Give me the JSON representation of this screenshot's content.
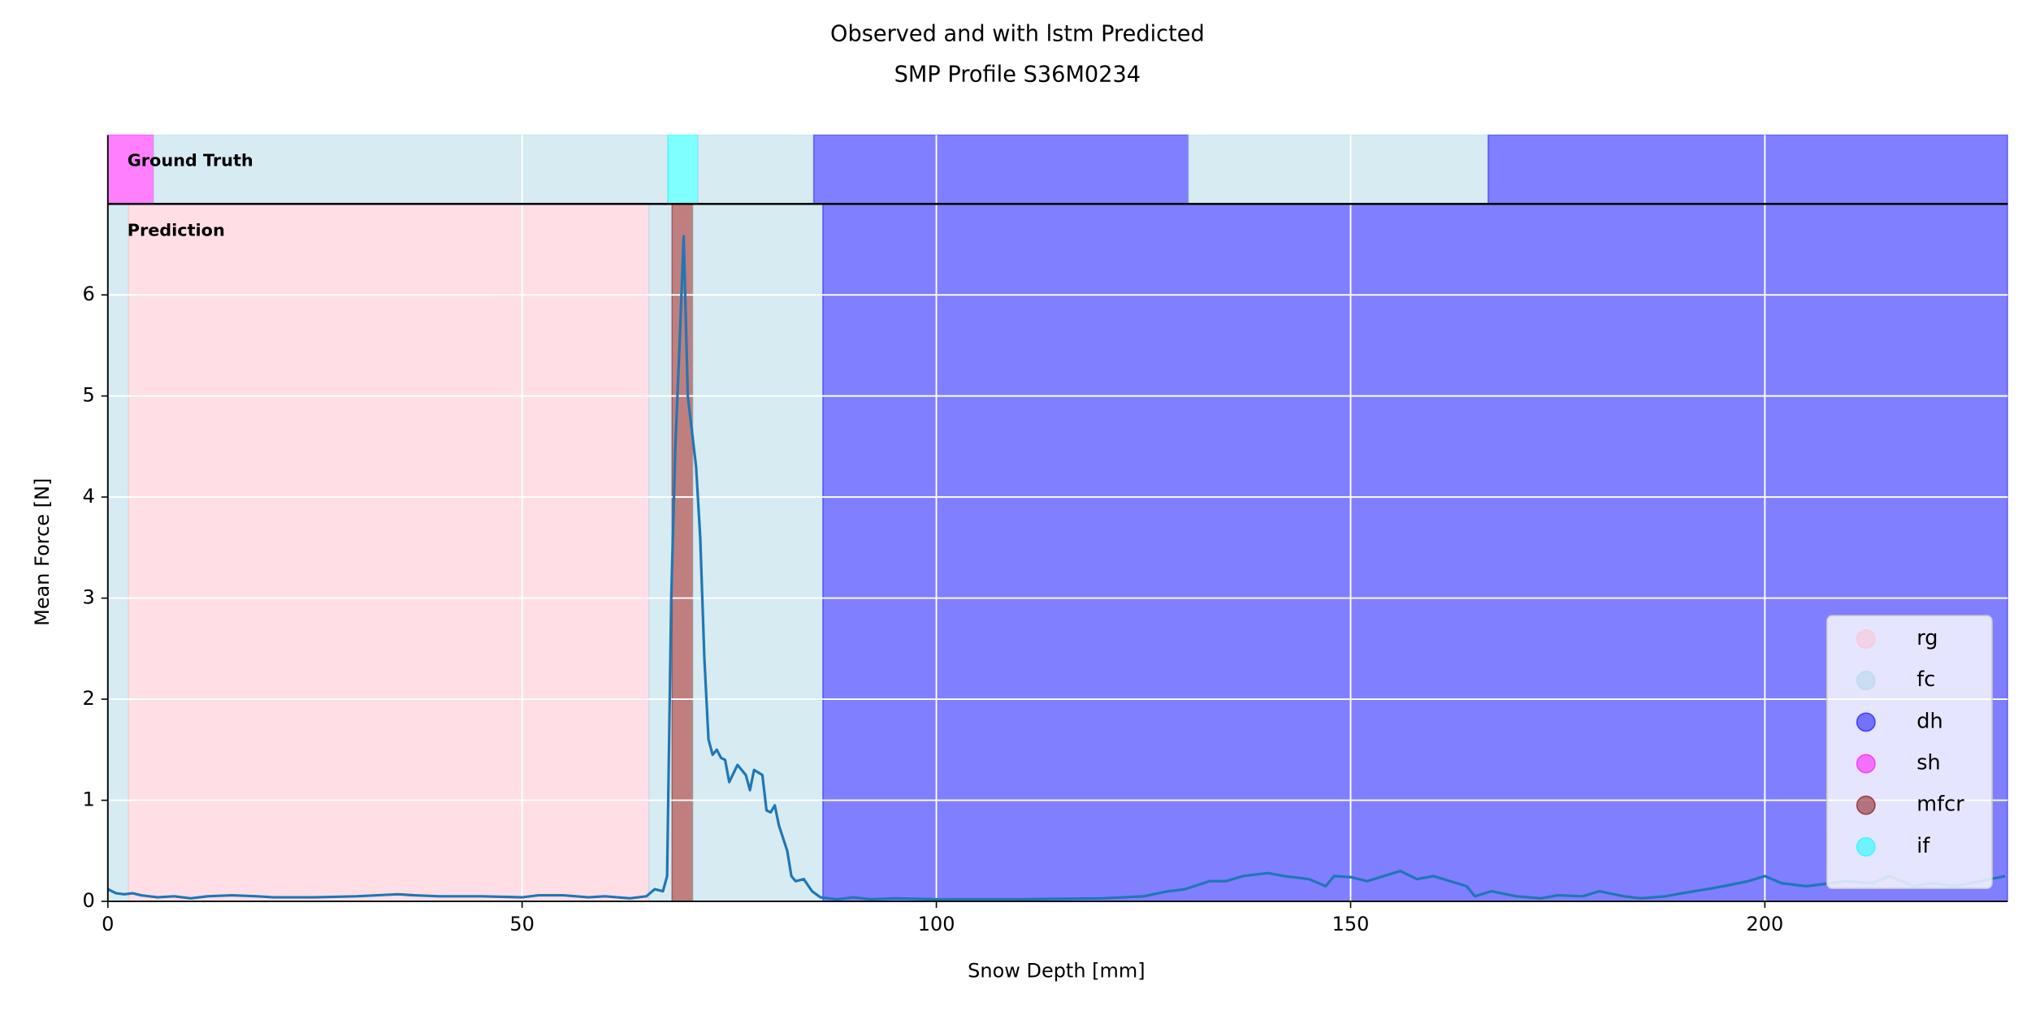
{
  "chart_data": {
    "type": "line",
    "title": "Observed and with lstm Predicted",
    "subtitle": "SMP Profile S36M0234",
    "x_label": "Snow Depth [mm]",
    "y_label": "Mean Force [N]",
    "top_panel_label": "Ground Truth",
    "main_panel_label": "Prediction",
    "xlim": [
      0,
      229.3
    ],
    "ylim": [
      0,
      6.9
    ],
    "xticks": [
      0,
      50,
      100,
      150,
      200
    ],
    "yticks": [
      0,
      1,
      2,
      3,
      4,
      5,
      6
    ],
    "grid": true,
    "legend_position": "lower right",
    "line_color": "#1f77b4",
    "band_opacity": 0.5,
    "classes": [
      {
        "name": "rg",
        "color": "pink"
      },
      {
        "name": "fc",
        "color": "lightblue"
      },
      {
        "name": "dh",
        "color": "blue"
      },
      {
        "name": "sh",
        "color": "magenta"
      },
      {
        "name": "mfcr",
        "color": "maroon"
      },
      {
        "name": "if",
        "color": "cyan"
      }
    ],
    "ground_truth": [
      {
        "label": "sh",
        "start": 0,
        "end": 5.5
      },
      {
        "label": "fc",
        "start": 5.5,
        "end": 67.6
      },
      {
        "label": "if",
        "start": 67.6,
        "end": 71.2
      },
      {
        "label": "fc",
        "start": 71.2,
        "end": 85.2
      },
      {
        "label": "dh",
        "start": 85.2,
        "end": 130.4
      },
      {
        "label": "fc",
        "start": 130.4,
        "end": 166.6
      },
      {
        "label": "dh",
        "start": 166.6,
        "end": 229.3
      }
    ],
    "prediction": [
      {
        "label": "fc",
        "start": 0,
        "end": 2.5
      },
      {
        "label": "rg",
        "start": 2.5,
        "end": 65.3
      },
      {
        "label": "fc",
        "start": 65.3,
        "end": 68.1
      },
      {
        "label": "mfcr",
        "start": 68.1,
        "end": 70.6
      },
      {
        "label": "fc",
        "start": 70.6,
        "end": 86.3
      },
      {
        "label": "dh",
        "start": 86.3,
        "end": 229.3
      }
    ],
    "x": [
      0,
      1,
      2,
      3,
      4,
      5,
      6,
      8,
      10,
      12,
      15,
      18,
      20,
      25,
      30,
      35,
      37,
      40,
      45,
      50,
      52,
      55,
      58,
      60,
      63,
      65,
      66,
      67,
      67.5,
      68,
      68.5,
      69,
      69.5,
      70,
      71,
      71.5,
      72,
      72.5,
      73,
      73.5,
      74,
      74.5,
      75,
      76,
      77,
      77.5,
      78,
      79,
      79.5,
      80,
      80.5,
      81,
      82,
      82.5,
      83,
      84,
      85,
      86,
      88,
      90,
      92,
      95,
      100,
      110,
      120,
      125,
      128,
      130,
      133,
      135,
      137,
      140,
      142,
      145,
      147,
      148,
      150,
      152,
      154,
      156,
      158,
      160,
      162,
      164,
      165,
      167,
      170,
      173,
      175,
      178,
      180,
      183,
      185,
      188,
      190,
      193,
      195,
      198,
      200,
      202,
      205,
      208,
      210,
      213,
      215,
      218,
      220,
      223,
      226,
      229
    ],
    "values": [
      0.12,
      0.08,
      0.07,
      0.08,
      0.06,
      0.05,
      0.04,
      0.05,
      0.03,
      0.05,
      0.06,
      0.05,
      0.04,
      0.04,
      0.05,
      0.07,
      0.06,
      0.05,
      0.05,
      0.04,
      0.06,
      0.06,
      0.04,
      0.05,
      0.03,
      0.05,
      0.12,
      0.1,
      0.25,
      3.0,
      4.5,
      5.5,
      6.58,
      5.0,
      4.3,
      3.6,
      2.4,
      1.6,
      1.45,
      1.5,
      1.42,
      1.4,
      1.18,
      1.35,
      1.25,
      1.1,
      1.3,
      1.25,
      0.9,
      0.88,
      0.95,
      0.75,
      0.5,
      0.25,
      0.2,
      0.22,
      0.1,
      0.04,
      0.02,
      0.04,
      0.02,
      0.03,
      0.02,
      0.02,
      0.03,
      0.05,
      0.1,
      0.12,
      0.2,
      0.2,
      0.25,
      0.28,
      0.25,
      0.22,
      0.15,
      0.25,
      0.24,
      0.2,
      0.25,
      0.3,
      0.22,
      0.25,
      0.2,
      0.15,
      0.05,
      0.1,
      0.05,
      0.03,
      0.06,
      0.05,
      0.1,
      0.05,
      0.03,
      0.05,
      0.08,
      0.12,
      0.15,
      0.2,
      0.25,
      0.18,
      0.15,
      0.18,
      0.2,
      0.18,
      0.25,
      0.15,
      0.18,
      0.15,
      0.2,
      0.25
    ]
  }
}
